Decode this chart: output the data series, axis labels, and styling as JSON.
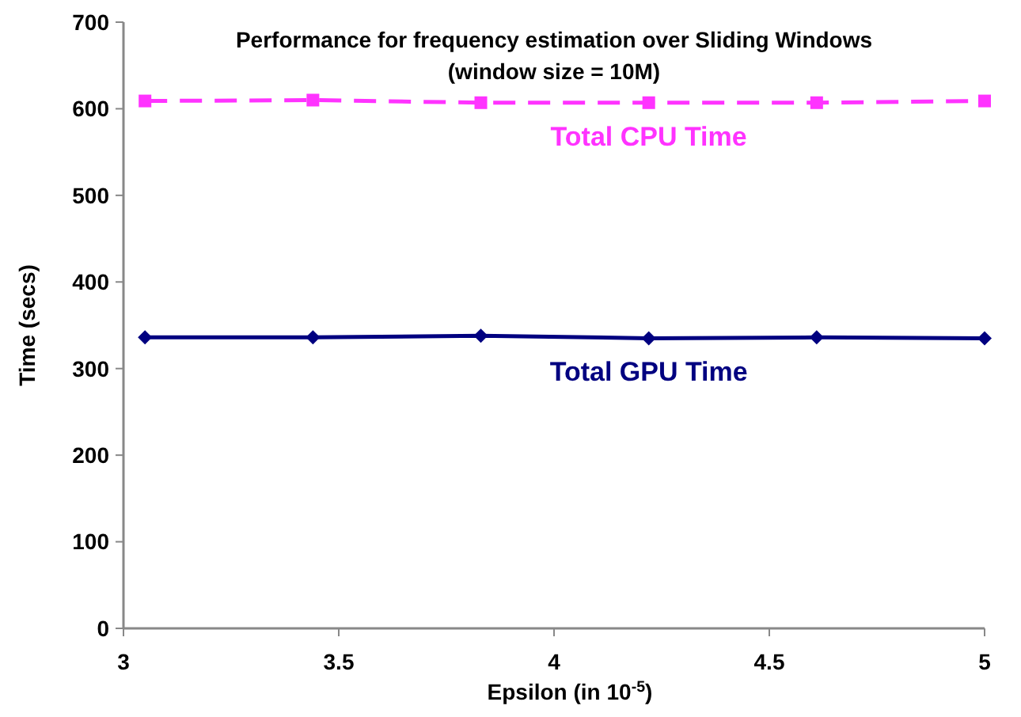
{
  "chart_data": {
    "type": "line",
    "title": "Performance for frequency estimation over Sliding Windows",
    "subtitle": "(window size = 10M)",
    "xlabel": "Epsilon (in 10$^{-5}$)",
    "ylabel": "Time (secs)",
    "x": [
      3.05,
      3.44,
      3.83,
      4.22,
      4.61,
      5
    ],
    "series": [
      {
        "name": "Total CPU Time",
        "color": "#ff33ff",
        "values": [
          609,
          610,
          607,
          607,
          607,
          609
        ],
        "marker": "square",
        "line_style": "dashed"
      },
      {
        "name": "Total GPU Time",
        "color": "#000080",
        "values": [
          336,
          336,
          338,
          335,
          336,
          335
        ],
        "marker": "diamond",
        "line_style": "solid"
      }
    ],
    "xlim": [
      3,
      5
    ],
    "xticks": [
      3,
      3.5,
      4,
      4.5,
      5
    ],
    "ylim": [
      0,
      700
    ],
    "yticks": [
      0,
      100,
      200,
      300,
      400,
      500,
      600,
      700
    ],
    "grid": false,
    "legend": false
  }
}
